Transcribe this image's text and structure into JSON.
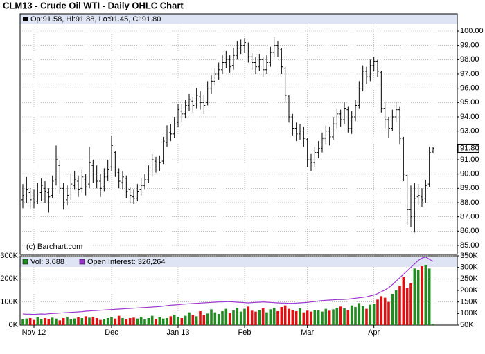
{
  "chart_data": [
    {
      "type": "ohlc",
      "title": "CLM13 - Crude Oil WTI - Daily OHLC Chart",
      "subtitle": "Op:91.58, Hi:91.88, Lo:91.45, Cl:91.80",
      "annotation": "(c) Barchart.com",
      "color": "#000000",
      "colors": {
        "up": "#228b22",
        "down": "#dd1111"
      },
      "grid": true,
      "categories": [
        null,
        null,
        null,
        "Nov 12",
        null,
        null,
        null,
        null,
        null,
        null,
        null,
        null,
        null,
        null,
        null,
        null,
        null,
        null,
        null,
        null,
        null,
        null,
        null,
        null,
        "Dec",
        null,
        null,
        null,
        null,
        null,
        null,
        null,
        null,
        null,
        null,
        null,
        null,
        null,
        null,
        null,
        null,
        null,
        "Jan 13",
        null,
        null,
        null,
        null,
        null,
        null,
        null,
        null,
        null,
        null,
        null,
        null,
        null,
        null,
        null,
        null,
        null,
        "Feb",
        null,
        null,
        null,
        null,
        null,
        null,
        null,
        null,
        null,
        null,
        null,
        null,
        null,
        null,
        null,
        null,
        "Mar",
        null,
        null,
        null,
        null,
        null,
        null,
        null,
        null,
        null,
        null,
        null,
        null,
        null,
        null,
        null,
        null,
        null,
        "Apr",
        null,
        null,
        null,
        null,
        null,
        null,
        null,
        null,
        null,
        null,
        null,
        null,
        null,
        null,
        null,
        null
      ],
      "open": [
        88.2,
        88.6,
        88.7,
        88.3,
        88.1,
        88.7,
        89.0,
        88.7,
        88.5,
        89.6,
        90.6,
        89.0,
        88.2,
        88.6,
        89.2,
        89.5,
        89.0,
        89.6,
        89.3,
        90.6,
        90.0,
        89.5,
        89.1,
        89.8,
        90.5,
        91.5,
        90.1,
        89.4,
        89.7,
        88.9,
        88.4,
        88.3,
        88.9,
        89.2,
        89.6,
        90.2,
        90.9,
        90.5,
        90.9,
        92.2,
        92.9,
        92.8,
        93.6,
        94.4,
        94.2,
        94.8,
        95.1,
        94.9,
        95.4,
        95.0,
        95.0,
        96.0,
        96.5,
        97.0,
        97.3,
        97.8,
        98.0,
        97.6,
        98.3,
        98.8,
        99.0,
        99.1,
        98.2,
        97.8,
        97.5,
        98.0,
        97.3,
        97.8,
        98.5,
        99.0,
        98.7,
        97.4,
        95.4,
        94.0,
        93.2,
        92.8,
        93.0,
        92.4,
        91.0,
        90.8,
        91.5,
        91.8,
        92.5,
        93.0,
        92.6,
        93.5,
        94.2,
        93.8,
        94.5,
        93.2,
        94.0,
        94.8,
        96.0,
        97.2,
        96.8,
        97.6,
        97.9,
        97.1,
        94.6,
        93.8,
        93.2,
        94.0,
        94.5,
        92.5,
        89.9,
        87.5,
        87.2,
        88.4,
        88.4,
        88.3,
        89.3,
        91.58
      ],
      "high": [
        89.3,
        89.8,
        89.0,
        88.9,
        89.4,
        89.7,
        89.5,
        89.0,
        89.9,
        92.0,
        91.0,
        89.4,
        89.2,
        90.0,
        90.2,
        89.9,
        90.3,
        90.0,
        91.9,
        91.0,
        90.6,
        90.0,
        90.4,
        91.0,
        92.7,
        91.6,
        90.4,
        90.2,
        89.9,
        89.1,
        88.9,
        89.3,
        89.7,
        90.0,
        90.6,
        91.4,
        91.2,
        91.3,
        92.6,
        93.4,
        93.5,
        94.0,
        94.9,
        94.9,
        95.2,
        95.6,
        95.4,
        96.0,
        95.8,
        95.5,
        96.5,
        96.9,
        97.4,
        97.8,
        98.3,
        98.6,
        98.3,
        98.8,
        99.3,
        99.4,
        99.5,
        99.2,
        98.5,
        98.2,
        98.4,
        98.2,
        98.3,
        98.9,
        99.6,
        99.3,
        98.8,
        97.5,
        95.5,
        94.2,
        93.6,
        93.5,
        93.3,
        92.5,
        91.4,
        91.9,
        92.3,
        92.9,
        93.4,
        93.3,
        94.0,
        94.6,
        94.5,
        95.0,
        94.7,
        94.4,
        95.2,
        96.5,
        97.6,
        97.5,
        98.0,
        98.2,
        98.0,
        97.2,
        95.0,
        94.0,
        94.5,
        95.0,
        94.7,
        92.6,
        90.0,
        89.2,
        89.4,
        89.3,
        89.0,
        89.6,
        91.9,
        91.88
      ],
      "low": [
        87.6,
        88.0,
        87.5,
        87.6,
        87.9,
        88.1,
        88.0,
        87.3,
        88.3,
        89.2,
        88.6,
        87.5,
        87.8,
        88.2,
        88.9,
        88.4,
        88.7,
        88.5,
        89.0,
        89.4,
        89.0,
        88.4,
        88.8,
        89.5,
        90.2,
        89.8,
        89.0,
        88.9,
        88.3,
        88.0,
        87.9,
        88.1,
        88.5,
        88.9,
        89.4,
        89.9,
        90.1,
        90.2,
        90.7,
        91.9,
        92.3,
        92.5,
        93.3,
        93.6,
        93.9,
        94.4,
        94.3,
        94.6,
        94.5,
        94.2,
        94.8,
        95.6,
        96.2,
        96.6,
        97.0,
        97.4,
        97.1,
        97.3,
        98.0,
        98.4,
        98.5,
        97.8,
        97.3,
        97.0,
        97.2,
        96.8,
        97.0,
        97.5,
        98.2,
        98.2,
        97.0,
        95.0,
        93.6,
        92.7,
        92.3,
        92.4,
        91.9,
        90.5,
        90.2,
        90.5,
        91.1,
        91.5,
        92.1,
        92.0,
        92.4,
        93.2,
        93.3,
        93.5,
        92.9,
        92.8,
        93.7,
        94.6,
        95.8,
        96.3,
        96.5,
        97.2,
        96.8,
        94.3,
        93.2,
        92.5,
        93.0,
        93.6,
        92.1,
        89.5,
        86.4,
        86.3,
        85.9,
        87.8,
        87.7,
        88.0,
        89.1,
        91.45
      ],
      "close": [
        88.5,
        88.9,
        88.2,
        88.0,
        88.6,
        89.2,
        88.8,
        88.4,
        89.5,
        91.0,
        89.0,
        88.0,
        88.5,
        89.3,
        89.6,
        88.9,
        89.8,
        89.1,
        90.8,
        90.0,
        89.5,
        89.0,
        89.8,
        90.3,
        92.0,
        90.2,
        89.5,
        89.8,
        88.8,
        88.5,
        88.3,
        88.8,
        89.2,
        89.6,
        90.2,
        91.0,
        90.5,
        90.8,
        92.3,
        93.0,
        92.8,
        93.5,
        94.5,
        94.2,
        94.8,
        95.2,
        94.8,
        95.5,
        95.0,
        94.8,
        96.0,
        96.5,
        97.0,
        97.3,
        97.8,
        98.0,
        97.5,
        98.3,
        98.8,
        99.0,
        99.2,
        98.2,
        97.8,
        97.5,
        98.0,
        97.3,
        97.8,
        98.5,
        99.0,
        98.8,
        97.5,
        95.5,
        94.0,
        93.2,
        92.8,
        93.0,
        92.5,
        91.0,
        90.8,
        91.5,
        91.8,
        92.5,
        93.0,
        92.6,
        93.5,
        94.2,
        93.8,
        94.6,
        93.2,
        94.0,
        94.8,
        96.0,
        97.2,
        96.8,
        97.6,
        97.9,
        97.2,
        94.6,
        93.8,
        93.2,
        94.0,
        94.5,
        92.5,
        90.0,
        87.5,
        87.0,
        88.3,
        88.5,
        88.2,
        89.2,
        91.5,
        91.8
      ],
      "last_price": {
        "value": 91.8,
        "label": "91.80"
      },
      "ylim": [
        84.37,
        101.21
      ],
      "yticks": [
        {
          "value": 85,
          "label": "85.00"
        },
        {
          "value": 86,
          "label": "86.00"
        },
        {
          "value": 87,
          "label": "87.00"
        },
        {
          "value": 88,
          "label": "88.00"
        },
        {
          "value": 89,
          "label": "89.00"
        },
        {
          "value": 90,
          "label": "90.00"
        },
        {
          "value": 91,
          "label": "91.00"
        },
        {
          "value": 93,
          "label": "93.00"
        },
        {
          "value": 94,
          "label": "94.00"
        },
        {
          "value": 95,
          "label": "95.00"
        },
        {
          "value": 96,
          "label": "96.00"
        },
        {
          "value": 97,
          "label": "97.00"
        },
        {
          "value": 98,
          "label": "98.00"
        },
        {
          "value": 99,
          "label": "99.00"
        },
        {
          "value": 100,
          "label": "100.00"
        }
      ]
    },
    {
      "type": "bar",
      "grid": true,
      "series": [
        {
          "name": "Vol: 3,688",
          "color": "#228b22",
          "values": [
            25000,
            28000,
            30000,
            22000,
            35000,
            26000,
            30000,
            24000,
            32000,
            28000,
            20000,
            30000,
            35000,
            25000,
            28000,
            33000,
            30000,
            38000,
            32000,
            36000,
            30000,
            22000,
            26000,
            30000,
            35000,
            28000,
            40000,
            30000,
            25000,
            30000,
            32000,
            28000,
            36000,
            24000,
            30000,
            40000,
            26000,
            34000,
            28000,
            30000,
            38000,
            45000,
            35000,
            30000,
            40000,
            55000,
            42000,
            38000,
            60000,
            45000,
            50000,
            68000,
            55000,
            48000,
            60000,
            70000,
            52000,
            64000,
            75000,
            58000,
            70000,
            80000,
            62000,
            58000,
            66000,
            72000,
            55000,
            68000,
            74000,
            60000,
            78000,
            85000,
            70000,
            65000,
            60000,
            72000,
            55000,
            62000,
            58000,
            66000,
            64000,
            58000,
            70000,
            62000,
            68000,
            75000,
            80000,
            72000,
            65000,
            85000,
            78000,
            95000,
            82000,
            70000,
            88000,
            92000,
            110000,
            125000,
            118000,
            100000,
            135000,
            150000,
            170000,
            210000,
            160000,
            180000,
            245000,
            240000,
            255000,
            260000,
            245000,
            3688
          ]
        },
        {
          "name": "Open Interest: 326,264",
          "color": "#9933cc",
          "type": "line",
          "axis": "y2",
          "values": [
            98000,
            97000,
            97000,
            96000,
            97000,
            98000,
            97000,
            99000,
            100000,
            101000,
            102000,
            103000,
            104000,
            105000,
            106000,
            107000,
            108000,
            110000,
            111000,
            112000,
            113000,
            114000,
            115000,
            116000,
            117000,
            118000,
            119000,
            120000,
            121000,
            122000,
            123000,
            124000,
            125000,
            126000,
            127000,
            128000,
            129000,
            130000,
            132000,
            134000,
            136000,
            137000,
            138000,
            140000,
            141000,
            142000,
            143000,
            144000,
            145000,
            146000,
            147000,
            148000,
            149000,
            150000,
            150000,
            151000,
            151000,
            150000,
            149000,
            148000,
            147000,
            146000,
            147000,
            148000,
            149000,
            150000,
            149000,
            148000,
            147000,
            146000,
            145000,
            145000,
            144000,
            144000,
            145000,
            146000,
            147000,
            148000,
            150000,
            152000,
            154000,
            156000,
            157000,
            158000,
            159000,
            160000,
            160000,
            161000,
            162000,
            164000,
            166000,
            168000,
            170000,
            172000,
            176000,
            180000,
            186000,
            194000,
            202000,
            212000,
            225000,
            240000,
            255000,
            270000,
            285000,
            300000,
            315000,
            330000,
            340000,
            345000,
            335000,
            326264
          ]
        }
      ],
      "ylim": [
        0,
        300000
      ],
      "yticks": [
        {
          "value": 0,
          "label": "0K"
        },
        {
          "value": 100000,
          "label": "100K"
        },
        {
          "value": 200000,
          "label": "200K"
        },
        {
          "value": 300000,
          "label": "300K"
        }
      ],
      "y2lim": [
        50000,
        350000
      ],
      "y2ticks": [
        {
          "value": 50000,
          "label": "50K"
        },
        {
          "value": 100000,
          "label": "100K"
        },
        {
          "value": 150000,
          "label": "150K"
        },
        {
          "value": 200000,
          "label": "200K"
        },
        {
          "value": 250000,
          "label": "250K"
        },
        {
          "value": 300000,
          "label": "300K"
        },
        {
          "value": 350000,
          "label": "350K"
        }
      ]
    }
  ]
}
